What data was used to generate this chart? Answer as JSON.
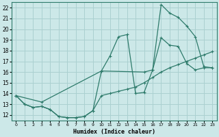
{
  "xlabel": "Humidex (Indice chaleur)",
  "bg_color": "#cce8e8",
  "grid_color": "#aad0d0",
  "line_color": "#2d7a6a",
  "xlim": [
    -0.5,
    23.5
  ],
  "ylim": [
    11.5,
    22.5
  ],
  "xticks": [
    0,
    1,
    2,
    3,
    4,
    5,
    6,
    7,
    8,
    9,
    10,
    11,
    12,
    13,
    14,
    15,
    16,
    17,
    18,
    19,
    20,
    21,
    22,
    23
  ],
  "yticks": [
    12,
    13,
    14,
    15,
    16,
    17,
    18,
    19,
    20,
    21,
    22
  ],
  "series1_x": [
    0,
    1,
    2,
    3,
    4,
    5,
    6,
    7,
    8,
    9,
    10,
    11,
    12,
    13,
    14,
    15,
    16,
    17,
    18,
    19,
    20,
    21,
    22,
    23
  ],
  "series1_y": [
    13.8,
    13.0,
    12.7,
    12.8,
    12.5,
    11.85,
    11.75,
    11.75,
    11.85,
    12.4,
    13.8,
    14.0,
    14.2,
    14.4,
    14.6,
    15.0,
    15.5,
    16.0,
    16.4,
    16.7,
    17.0,
    17.3,
    17.6,
    17.9
  ],
  "series2_x": [
    0,
    1,
    2,
    3,
    4,
    5,
    6,
    7,
    8,
    9,
    10,
    11,
    12,
    13,
    14,
    15,
    16,
    17,
    18,
    19,
    20,
    21,
    22,
    23
  ],
  "series2_y": [
    13.8,
    13.0,
    12.7,
    12.8,
    12.5,
    11.85,
    11.75,
    11.75,
    11.85,
    12.4,
    16.1,
    17.5,
    19.3,
    19.5,
    14.0,
    14.1,
    16.2,
    19.2,
    18.5,
    18.4,
    16.8,
    16.2,
    16.4,
    16.4
  ],
  "series3_x": [
    0,
    3,
    10,
    15,
    16,
    17,
    18,
    19,
    20,
    21,
    22,
    23
  ],
  "series3_y": [
    13.8,
    13.2,
    16.1,
    16.0,
    16.2,
    22.3,
    21.5,
    21.1,
    20.3,
    19.3,
    16.5,
    16.4
  ]
}
